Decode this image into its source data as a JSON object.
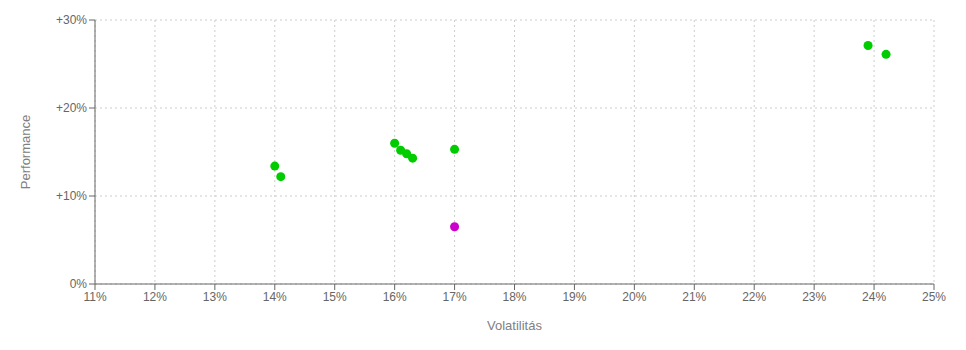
{
  "chart_data": {
    "type": "scatter",
    "xlabel": "Volatilitás",
    "ylabel": "Performance",
    "xlim": [
      0.11,
      0.25
    ],
    "ylim": [
      0.0,
      0.3
    ],
    "xticks": [
      {
        "value": 0.11,
        "label": "11%"
      },
      {
        "value": 0.12,
        "label": "12%"
      },
      {
        "value": 0.13,
        "label": "13%"
      },
      {
        "value": 0.14,
        "label": "14%"
      },
      {
        "value": 0.15,
        "label": "15%"
      },
      {
        "value": 0.16,
        "label": "16%"
      },
      {
        "value": 0.17,
        "label": "17%"
      },
      {
        "value": 0.18,
        "label": "18%"
      },
      {
        "value": 0.19,
        "label": "19%"
      },
      {
        "value": 0.2,
        "label": "20%"
      },
      {
        "value": 0.21,
        "label": "21%"
      },
      {
        "value": 0.22,
        "label": "22%"
      },
      {
        "value": 0.23,
        "label": "23%"
      },
      {
        "value": 0.24,
        "label": "24%"
      },
      {
        "value": 0.25,
        "label": "25%"
      }
    ],
    "yticks": [
      {
        "value": 0.0,
        "label": "0%"
      },
      {
        "value": 0.1,
        "label": "+10%"
      },
      {
        "value": 0.2,
        "label": "+20%"
      },
      {
        "value": 0.3,
        "label": "+30%"
      }
    ],
    "grid": true,
    "series": [
      {
        "color": "#00cc00",
        "x": [
          0.14,
          0.141,
          0.16,
          0.161,
          0.162,
          0.163,
          0.17,
          0.239,
          0.242
        ],
        "values": [
          0.134,
          0.122,
          0.16,
          0.152,
          0.148,
          0.143,
          0.153,
          0.271,
          0.261
        ]
      },
      {
        "color": "#cc00cc",
        "x": [
          0.17
        ],
        "values": [
          0.065
        ]
      }
    ]
  }
}
